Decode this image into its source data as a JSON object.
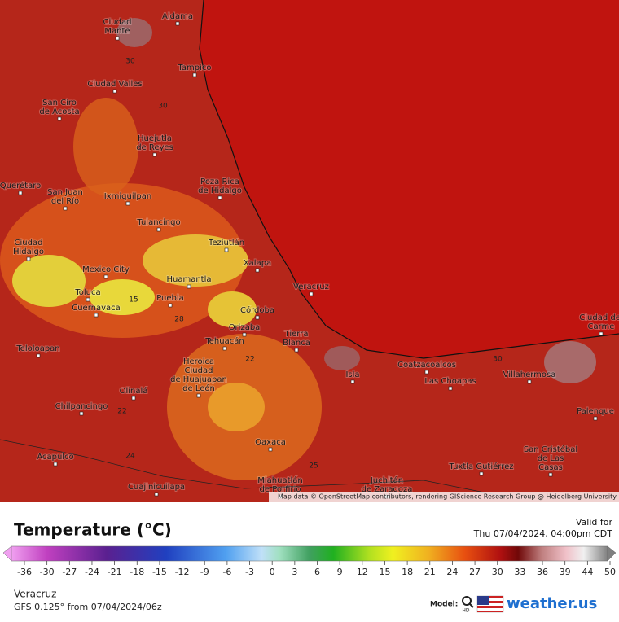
{
  "map": {
    "cities": [
      {
        "lines": [
          "Aldama"
        ]
      },
      {
        "lines": [
          "Ciudad",
          "Mante"
        ]
      },
      {
        "lines": [
          "Tampico"
        ]
      },
      {
        "lines": [
          "Ciudad Valles"
        ]
      },
      {
        "lines": [
          "San Ciro",
          "de Acosta"
        ]
      },
      {
        "lines": [
          "Huejutla",
          "de Reyes"
        ]
      },
      {
        "lines": [
          "Querétaro"
        ]
      },
      {
        "lines": [
          "San Juan",
          "del Río"
        ]
      },
      {
        "lines": [
          "Ixmiquilpan"
        ]
      },
      {
        "lines": [
          "Poza Rica",
          "de Hidalgo"
        ]
      },
      {
        "lines": [
          "Tulancingo"
        ]
      },
      {
        "lines": [
          "Teziutlán"
        ]
      },
      {
        "lines": [
          "Ciudad",
          "Hidalgo"
        ]
      },
      {
        "lines": [
          "Xalapa"
        ]
      },
      {
        "lines": [
          "Mexico City"
        ]
      },
      {
        "lines": [
          "Huamantla"
        ]
      },
      {
        "lines": [
          "Veracruz"
        ]
      },
      {
        "lines": [
          "Toluca"
        ]
      },
      {
        "lines": [
          "Puebla"
        ]
      },
      {
        "lines": [
          "Cuernavaca"
        ]
      },
      {
        "lines": [
          "Córdoba"
        ]
      },
      {
        "lines": [
          "Orizaba"
        ]
      },
      {
        "lines": [
          "Ciudad del",
          "Carme"
        ]
      },
      {
        "lines": [
          "Tierra",
          "Blanca"
        ]
      },
      {
        "lines": [
          "Tehuacán"
        ]
      },
      {
        "lines": [
          "Teloloapan"
        ]
      },
      {
        "lines": [
          "Heroica",
          "Ciudad",
          "de Huajuapan",
          "de León"
        ]
      },
      {
        "lines": [
          "Coatzacoalcos"
        ]
      },
      {
        "lines": [
          "Villahermosa"
        ]
      },
      {
        "lines": [
          "Isla"
        ]
      },
      {
        "lines": [
          "Las Choapas"
        ]
      },
      {
        "lines": [
          "Olinalá"
        ]
      },
      {
        "lines": [
          "Palenque"
        ]
      },
      {
        "lines": [
          "Chilpancingo"
        ]
      },
      {
        "lines": [
          "Oaxaca"
        ]
      },
      {
        "lines": [
          "San Cristóbal",
          "de Las",
          "Casas"
        ]
      },
      {
        "lines": [
          "Acapulco"
        ]
      },
      {
        "lines": [
          "Tuxtla Gutiérrez"
        ]
      },
      {
        "lines": [
          "Miahuatlán",
          "de Porfirio"
        ]
      },
      {
        "lines": [
          "Juchitán",
          "de Zaragoza"
        ]
      },
      {
        "lines": [
          "Cuajinicuilapa"
        ]
      }
    ],
    "contour_labels": [
      15,
      22,
      28,
      30,
      30,
      25,
      24,
      22,
      30
    ],
    "attribution": "Map data © OpenStreetMap contributors, rendering GIScience Research Group @ Heidelberg University"
  },
  "legend": {
    "title": "Temperature (°C)",
    "valid_label": "Valid for",
    "valid_time": "Thu 07/04/2024, 04:00pm CDT",
    "ticks": [
      -36,
      -30,
      -27,
      -24,
      -21,
      -18,
      -15,
      -12,
      -9,
      -6,
      -3,
      0,
      3,
      6,
      9,
      12,
      15,
      18,
      21,
      24,
      27,
      30,
      33,
      36,
      39,
      44,
      50
    ]
  },
  "footer": {
    "location": "Veracruz",
    "model_run": "GFS 0.125° from 07/04/2024/06z",
    "model_label": "Model:",
    "hd": "HD",
    "brand": "weather.us"
  }
}
